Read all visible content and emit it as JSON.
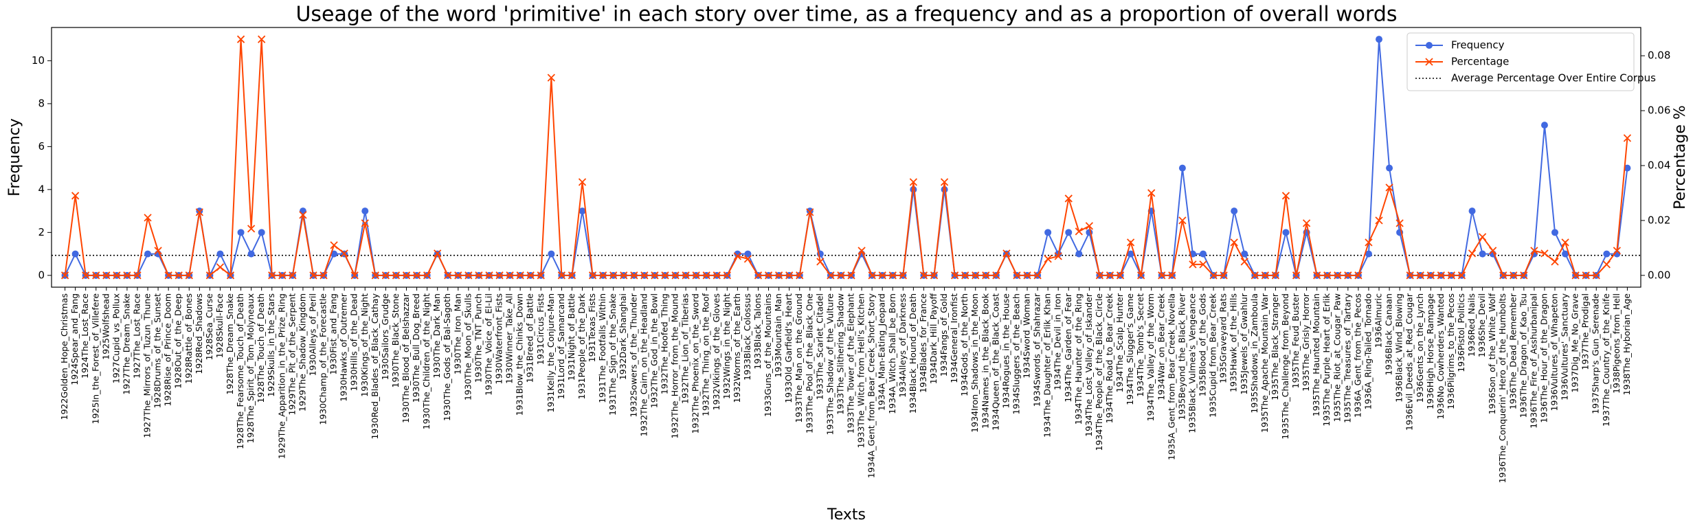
{
  "chart_data": {
    "type": "line",
    "title": "Useage of the word 'primitive' in each story over time, as a frequency and as a proportion of overall words",
    "xlabel": "Texts",
    "ylabel": "Frequency",
    "y2label": "Percentage %",
    "categories": [
      "1922Golden_Hope_Christmas",
      "1924Spear_and_Fang",
      "1924The_Lost_Race",
      "1925In_the_Forest_of_Villefere",
      "1925Wolfshead",
      "1927Cupid_vs_Pollux",
      "1927The_Dream_Snake",
      "1927The_Lost_Race",
      "1927The_Mirrors_of_Tuzun_Thune",
      "1928Drums_of_the_Sunset",
      "1928Rise_of_Prince_Doom",
      "1928Out_of_the_Deep",
      "1928Rattle_of_Bones",
      "1928Red_Shadows",
      "1928Sea_Curse",
      "1928Skull-Face",
      "1928The_Dream_Snake",
      "1928The_Fearsome_Touch_of_Death",
      "1928The_Spirit_of_Tom_Molyneaux",
      "1928The_Touch_of_Death",
      "1929Skulls_in_the_Stars",
      "1929The_Apparition_in_the_Prize_Ring",
      "1929The_Pit_of_the_Serpent",
      "1929The_Shadow_Kingdom",
      "1930Alleys_of_Peril",
      "1930Champ_of_the_Forecastle",
      "1930Fist_and_Fang",
      "1930Hawks_of_Outremer",
      "1930Hills_of_the_Dead",
      "1930Kings_of_the_Night",
      "1930Red_Blades_of_Black_Cathay",
      "1930Sailors_Grudge",
      "1930The_Black_Stone",
      "1930The_Blood_of_Belshazzar",
      "1930The_Bull_Dog_Breed",
      "1930The_Children_of_the_Night",
      "1930The_Dark_Man",
      "1930The_Gods_of_Bal-Sagoth",
      "1930The_Iron_Man",
      "1930The_Moon_of_Skulls",
      "1930The_TNT_Punch",
      "1930The_Voice_of_El-Lil",
      "1930Waterfront_Fists",
      "1930Winner_Take_All",
      "1931Blow_the_Chinks_Down",
      "1931Breed_of_Battle",
      "1931Circus_Fists",
      "1931Kelly_the_Conjure-Man",
      "1931Lord_of_Samarcand",
      "1931Night_of_Battle",
      "1931People_of_the_Dark",
      "1931Texas_Fists",
      "1931The_Footfalls_Within",
      "1931The_Sign_of_the_Snake",
      "1932Dark_Shanghai",
      "1932Sowers_of_the_Thunder",
      "1932The_Cairn_on_the_Headland",
      "1932The_God_in_the_Bowl",
      "1932The_Hoofed_Thing",
      "1932The_Horror_from_the_Mound",
      "1932The_Lion_of_Tiberias",
      "1932The_Phoenix_on_the_Sword",
      "1932The_Thing_on_the_Roof",
      "1932Vikings_of_the_Gloves",
      "1932Wings_in_the_Night",
      "1932Worms_of_the_Earth",
      "1933Black_Colossus",
      "1933Black_Talons",
      "1933Guns_of_the_Mountains",
      "1933Mountain_Man",
      "1933Old_Garfield's_Heart",
      "1933The_Man_on_the_Ground",
      "1933The_Pool_of_the_Black_One",
      "1933The_Scarlet_Citadel",
      "1933The_Shadow_of_the_Vulture",
      "1933The_Slithering_Shadow",
      "1933The_Tower_of_the_Elephant",
      "1933The_Witch_from_Hell's_Kitchen",
      "1934A_Gent_from_Bear_Creek_Short_Story",
      "1934A_Man-Eating_Jeopard",
      "1934A_Witch_Shall_be_Born",
      "1934Alleys_of_Darkness",
      "1934Black_Hound_of_Death",
      "1934Blades_for_France",
      "1934Dark_Hill_Payoff",
      "1934Fangs_of_Gold",
      "1934General_Ironfist",
      "1934Gods_of_the_North",
      "1934Iron_Shadows_in_the_Moon",
      "1934Names_in_the_Black_Book",
      "1934Queen_of_the_Black_Coast",
      "1934Rogues_in_the_House",
      "1934Sluggers_of_the_Beach",
      "1934Sword_Woman",
      "1934Swords_of_Shahrazar",
      "1934The_Daughter_of_Erlik_Khan",
      "1934The_Devil_in_Iron",
      "1934The_Garden_of_Fear",
      "1934The_Haunter_of_the_Ring",
      "1934The_Lost_Valley_of_Iskander",
      "1934The_People_of_the_Black_Circle",
      "1934The_Road_to_Bear_Creek",
      "1934The_Scalp_Hunter",
      "1934The_Slugger's_Game",
      "1934The_Tomb's_Secret",
      "1934The_Valley_of_the_Worm",
      "1934War_on_Bear_Creek",
      "1935A_Gent_from_Bear_Creek_Novella",
      "1935Beyond_the_Black_River",
      "1935Black_Vulmea's_Vengeance",
      "1935Blood_of_the_Gods",
      "1935Cupid_from_Bear_Creek",
      "1935Graveyard_Rats",
      "1935Hawk_of_the_Hills",
      "1935Jewels_of_Gwahlur",
      "1935Shadows_in_Zamboula",
      "1935The_Apache_Mountain_War",
      "1935The_Black_Stranger",
      "1935The_Challenge_from_Beyond",
      "1935The_Feud_Buster",
      "1935The_Grisly_Horror",
      "1935The_Haunted_Mountain",
      "1935The_Purple_Heart_of_Erlik",
      "1935The_Riot_at_Cougar_Paw",
      "1935The_Treasures_of_Tartary",
      "1936A_Gent_from_the_Pecos",
      "1936A_Ring-Tailed_Tornado",
      "1936Almuric",
      "1936Black_Canaan",
      "1936Black_Wind_Blowing",
      "1936Evil_Deeds_at_Red_Cougar",
      "1936Gents_on_the_Lynch",
      "1936High_Horse_Rampage",
      "1936No_Cowherders_Wanted",
      "1936Pilgrims_to_the_Pecos",
      "1936Pistol_Politics",
      "1936Red_Nails",
      "1936She_Devil",
      "1936Son_of_the_White_Wolf",
      "1936The_Conquerin'_Hero_of_the_Humbolts",
      "1936The_Dead_Remember",
      "1936The_Dragon_of_Kao_Tsu",
      "1936The_Fire_of_Asshurbanipal",
      "1936The_Hour_of_the_Dragon",
      "1936Vultures_of_Whapeton",
      "1936Vultures'_Sanctuary",
      "1937Dig_Me_No_Grave",
      "1937The_Prodigal",
      "1937Sharp's_Gun_Serenade",
      "1937The_Country_of_the_Knife",
      "1938Pigeons_from_Hell",
      "1938The_Hyborian_Age"
    ],
    "series": [
      {
        "name": "Frequency",
        "color": "#4169e1",
        "marker": "o",
        "values": [
          0,
          1,
          0,
          0,
          0,
          0,
          0,
          0,
          1,
          1,
          0,
          0,
          0,
          3,
          0,
          1,
          0,
          2,
          1,
          2,
          0,
          0,
          0,
          3,
          0,
          0,
          1,
          1,
          0,
          3,
          0,
          0,
          0,
          0,
          0,
          0,
          1,
          0,
          0,
          0,
          0,
          0,
          0,
          0,
          0,
          0,
          0,
          1,
          0,
          0,
          3,
          0,
          0,
          0,
          0,
          0,
          0,
          0,
          0,
          0,
          0,
          0,
          0,
          0,
          0,
          1,
          1,
          0,
          0,
          0,
          0,
          0,
          3,
          1,
          0,
          0,
          0,
          1,
          0,
          0,
          0,
          0,
          4,
          0,
          0,
          4,
          0,
          0,
          0,
          0,
          0,
          1,
          0,
          0,
          0,
          2,
          1,
          2,
          1,
          2,
          0,
          0,
          0,
          1,
          0,
          3,
          0,
          0,
          5,
          1,
          1,
          0,
          0,
          3,
          1,
          0,
          0,
          0,
          2,
          0,
          2,
          0,
          0,
          0,
          0,
          0,
          1,
          11,
          5,
          2,
          0,
          0,
          0,
          0,
          0,
          0,
          3,
          1,
          1,
          0,
          0,
          0,
          1,
          7,
          2,
          1,
          0,
          0,
          0,
          1,
          1,
          5
        ]
      },
      {
        "name": "Percentage",
        "color": "#ff4500",
        "marker": "x",
        "axis": "y2",
        "values": [
          0,
          0.029,
          0,
          0,
          0,
          0,
          0,
          0,
          0.021,
          0.009,
          0,
          0,
          0,
          0.023,
          0,
          0.003,
          0,
          0.086,
          0.017,
          0.086,
          0,
          0,
          0,
          0.022,
          0,
          0,
          0.011,
          0.008,
          0,
          0.019,
          0,
          0,
          0,
          0,
          0,
          0,
          0.008,
          0,
          0,
          0,
          0,
          0,
          0,
          0,
          0,
          0,
          0,
          0.072,
          0,
          0,
          0.034,
          0,
          0,
          0,
          0,
          0,
          0,
          0,
          0,
          0,
          0,
          0,
          0,
          0,
          0,
          0.007,
          0.006,
          0,
          0,
          0,
          0,
          0,
          0.023,
          0.005,
          0,
          0,
          0,
          0.009,
          0,
          0,
          0,
          0,
          0.034,
          0,
          0,
          0.034,
          0,
          0,
          0,
          0,
          0,
          0.008,
          0,
          0,
          0,
          0.006,
          0.007,
          0.028,
          0.016,
          0.018,
          0,
          0,
          0,
          0.012,
          0,
          0.03,
          0,
          0,
          0.02,
          0.004,
          0.004,
          0,
          0,
          0.012,
          0.005,
          0,
          0,
          0,
          0.029,
          0,
          0.019,
          0,
          0,
          0,
          0,
          0,
          0.012,
          0.02,
          0.032,
          0.019,
          0,
          0,
          0,
          0,
          0,
          0,
          0.008,
          0.014,
          0.009,
          0,
          0,
          0,
          0.009,
          0.008,
          0.005,
          0.012,
          0,
          0,
          0,
          0.004,
          0.009,
          0.05
        ]
      }
    ],
    "hline": {
      "name": "Average Percentage Over Entire Corpus",
      "value": 0.0073,
      "axis": "y2",
      "color": "#000000"
    },
    "ylim": [
      -0.55,
      11.55
    ],
    "yticks": [
      0,
      2,
      4,
      6,
      8,
      10
    ],
    "y2lim": [
      -0.0043,
      0.0903
    ],
    "y2ticks": [
      {
        "value": 0,
        "label": "0.00"
      },
      {
        "value": 0.02,
        "label": "0.02"
      },
      {
        "value": 0.04,
        "label": "0.04"
      },
      {
        "value": 0.06,
        "label": "0.06"
      },
      {
        "value": 0.08,
        "label": "0.08"
      }
    ],
    "legend": "upper right"
  }
}
